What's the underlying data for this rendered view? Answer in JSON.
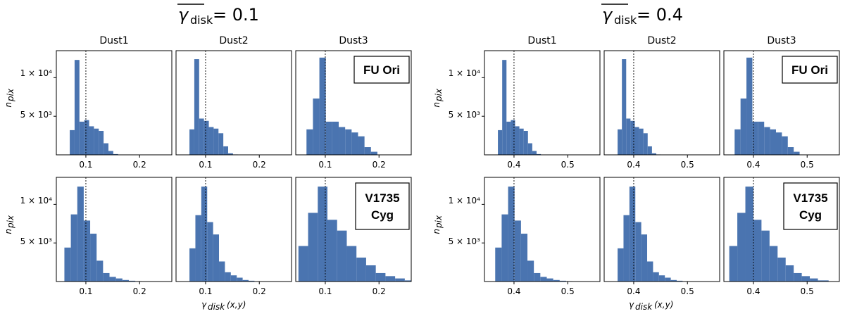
{
  "figure": {
    "left_title": {
      "symbol": "γ",
      "sub": "disk",
      "value": "= 0.1"
    },
    "right_title": {
      "symbol": "γ",
      "sub": "disk",
      "value": "= 0.4"
    },
    "column_titles": [
      "Dust1",
      "Dust2",
      "Dust3"
    ],
    "y_tick_labels": {
      "high": "1 × 10⁴",
      "low": "5 × 10³"
    },
    "ylabel": {
      "main": "n",
      "sub": "pix"
    },
    "xlabel": {
      "main": "γ",
      "sub": "disk",
      "rest": "(x,y)"
    },
    "tags": [
      [
        "FU Ori"
      ],
      [
        "V1735",
        "Cyg"
      ]
    ]
  },
  "chart_data": [
    {
      "type": "bar",
      "panel": "mean 0.1 · FU Ori · Dust1",
      "xlim": [
        0.045,
        0.26
      ],
      "ylim": [
        0,
        13500
      ],
      "x_ticks": [
        0.1,
        0.2
      ],
      "x_tick_labels": [
        "0.1",
        "0.2"
      ],
      "bin_edges": [
        0.07,
        0.079,
        0.088,
        0.097,
        0.106,
        0.115,
        0.124,
        0.133,
        0.142,
        0.151,
        0.16
      ],
      "counts": [
        3200,
        12300,
        4300,
        4500,
        3700,
        3400,
        3100,
        1500,
        500,
        100
      ],
      "mean_line": 0.1
    },
    {
      "type": "bar",
      "panel": "mean 0.1 · FU Ori · Dust2",
      "xlim": [
        0.045,
        0.26
      ],
      "ylim": [
        0,
        13500
      ],
      "x_ticks": [
        0.1,
        0.2
      ],
      "x_tick_labels": [
        "0.1",
        "0.2"
      ],
      "bin_edges": [
        0.07,
        0.079,
        0.088,
        0.097,
        0.106,
        0.115,
        0.124,
        0.133,
        0.142,
        0.151,
        0.16
      ],
      "counts": [
        3300,
        12400,
        4700,
        4400,
        3600,
        3400,
        2800,
        1100,
        200,
        50
      ],
      "mean_line": 0.1
    },
    {
      "type": "bar",
      "panel": "mean 0.1 · FU Ori · Dust3",
      "xlim": [
        0.045,
        0.26
      ],
      "ylim": [
        0,
        13500
      ],
      "x_ticks": [
        0.1,
        0.2
      ],
      "x_tick_labels": [
        "0.1",
        "0.2"
      ],
      "bin_edges": [
        0.065,
        0.077,
        0.089,
        0.101,
        0.113,
        0.125,
        0.137,
        0.149,
        0.161,
        0.173,
        0.185,
        0.197
      ],
      "counts": [
        3300,
        7300,
        12600,
        4300,
        4300,
        3600,
        3300,
        2900,
        2400,
        1000,
        400
      ],
      "mean_line": 0.1
    },
    {
      "type": "bar",
      "panel": "mean 0.4 · FU Ori · Dust1",
      "xlim": [
        0.345,
        0.56
      ],
      "ylim": [
        0,
        13500
      ],
      "x_ticks": [
        0.4,
        0.5
      ],
      "x_tick_labels": [
        "0.4",
        "0.5"
      ],
      "bin_edges": [
        0.37,
        0.378,
        0.386,
        0.394,
        0.402,
        0.41,
        0.418,
        0.426,
        0.434,
        0.442,
        0.45
      ],
      "counts": [
        3200,
        12300,
        4300,
        4500,
        3700,
        3400,
        3100,
        1500,
        500,
        100
      ],
      "mean_line": 0.4
    },
    {
      "type": "bar",
      "panel": "mean 0.4 · FU Ori · Dust2",
      "xlim": [
        0.345,
        0.56
      ],
      "ylim": [
        0,
        13500
      ],
      "x_ticks": [
        0.4,
        0.5
      ],
      "x_tick_labels": [
        "0.4",
        "0.5"
      ],
      "bin_edges": [
        0.37,
        0.378,
        0.386,
        0.394,
        0.402,
        0.41,
        0.418,
        0.426,
        0.434,
        0.442,
        0.45
      ],
      "counts": [
        3300,
        12400,
        4700,
        4400,
        3600,
        3400,
        2800,
        1100,
        200,
        50
      ],
      "mean_line": 0.4
    },
    {
      "type": "bar",
      "panel": "mean 0.4 · FU Ori · Dust3",
      "xlim": [
        0.345,
        0.56
      ],
      "ylim": [
        0,
        13500
      ],
      "x_ticks": [
        0.4,
        0.5
      ],
      "x_tick_labels": [
        "0.4",
        "0.5"
      ],
      "bin_edges": [
        0.365,
        0.376,
        0.387,
        0.398,
        0.409,
        0.42,
        0.431,
        0.442,
        0.453,
        0.464,
        0.475,
        0.486
      ],
      "counts": [
        3300,
        7300,
        12600,
        4300,
        4300,
        3600,
        3300,
        2900,
        2400,
        1000,
        400
      ],
      "mean_line": 0.4
    },
    {
      "type": "bar",
      "panel": "mean 0.1 · V1735 Cyg · Dust1",
      "xlim": [
        0.045,
        0.26
      ],
      "ylim": [
        0,
        13500
      ],
      "x_ticks": [
        0.1,
        0.2
      ],
      "x_tick_labels": [
        "0.1",
        "0.2"
      ],
      "bin_edges": [
        0.06,
        0.072,
        0.084,
        0.096,
        0.108,
        0.12,
        0.132,
        0.144,
        0.156,
        0.168,
        0.18,
        0.192,
        0.204
      ],
      "counts": [
        4400,
        8700,
        12300,
        7900,
        6200,
        2700,
        1100,
        600,
        400,
        200,
        100,
        50
      ],
      "mean_line": 0.1
    },
    {
      "type": "bar",
      "panel": "mean 0.1 · V1735 Cyg · Dust2",
      "xlim": [
        0.045,
        0.26
      ],
      "ylim": [
        0,
        13500
      ],
      "x_ticks": [
        0.1,
        0.2
      ],
      "x_tick_labels": [
        "0.1",
        "0.2"
      ],
      "bin_edges": [
        0.07,
        0.081,
        0.092,
        0.103,
        0.114,
        0.125,
        0.136,
        0.147,
        0.158,
        0.169,
        0.18,
        0.191
      ],
      "counts": [
        4300,
        8600,
        12300,
        7700,
        6100,
        2600,
        1200,
        800,
        500,
        200,
        100
      ],
      "mean_line": 0.1
    },
    {
      "type": "bar",
      "panel": "mean 0.1 · V1735 Cyg · Dust3",
      "xlim": [
        0.045,
        0.26
      ],
      "ylim": [
        0,
        13500
      ],
      "x_ticks": [
        0.1,
        0.2
      ],
      "x_tick_labels": [
        "0.1",
        "0.2"
      ],
      "bin_edges": [
        0.05,
        0.068,
        0.086,
        0.104,
        0.122,
        0.14,
        0.158,
        0.176,
        0.194,
        0.212,
        0.23,
        0.248,
        0.26
      ],
      "counts": [
        4600,
        8900,
        12300,
        8000,
        6600,
        4600,
        3100,
        2100,
        1100,
        700,
        400,
        150
      ],
      "mean_line": 0.1
    },
    {
      "type": "bar",
      "panel": "mean 0.4 · V1735 Cyg · Dust1",
      "xlim": [
        0.345,
        0.56
      ],
      "ylim": [
        0,
        13500
      ],
      "x_ticks": [
        0.4,
        0.5
      ],
      "x_tick_labels": [
        "0.4",
        "0.5"
      ],
      "bin_edges": [
        0.365,
        0.377,
        0.389,
        0.401,
        0.413,
        0.425,
        0.437,
        0.449,
        0.461,
        0.473,
        0.485,
        0.497,
        0.509
      ],
      "counts": [
        4400,
        8700,
        12300,
        7900,
        6200,
        2700,
        1100,
        600,
        400,
        200,
        100,
        50
      ],
      "mean_line": 0.4
    },
    {
      "type": "bar",
      "panel": "mean 0.4 · V1735 Cyg · Dust2",
      "xlim": [
        0.345,
        0.56
      ],
      "ylim": [
        0,
        13500
      ],
      "x_ticks": [
        0.4,
        0.5
      ],
      "x_tick_labels": [
        "0.4",
        "0.5"
      ],
      "bin_edges": [
        0.37,
        0.381,
        0.392,
        0.403,
        0.414,
        0.425,
        0.436,
        0.447,
        0.458,
        0.469,
        0.48,
        0.491
      ],
      "counts": [
        4300,
        8600,
        12300,
        7700,
        6100,
        2600,
        1200,
        800,
        500,
        200,
        100
      ],
      "mean_line": 0.4
    },
    {
      "type": "bar",
      "panel": "mean 0.4 · V1735 Cyg · Dust3",
      "xlim": [
        0.345,
        0.56
      ],
      "ylim": [
        0,
        13500
      ],
      "x_ticks": [
        0.4,
        0.5
      ],
      "x_tick_labels": [
        "0.4",
        "0.5"
      ],
      "bin_edges": [
        0.355,
        0.37,
        0.385,
        0.4,
        0.415,
        0.43,
        0.445,
        0.46,
        0.475,
        0.49,
        0.505,
        0.52,
        0.54
      ],
      "counts": [
        4600,
        8900,
        12300,
        8000,
        6600,
        4600,
        3100,
        2100,
        1100,
        700,
        400,
        150
      ],
      "mean_line": 0.4
    }
  ],
  "style": {
    "bar_color": "#4a74b0",
    "mean_line_color": "#000000"
  }
}
